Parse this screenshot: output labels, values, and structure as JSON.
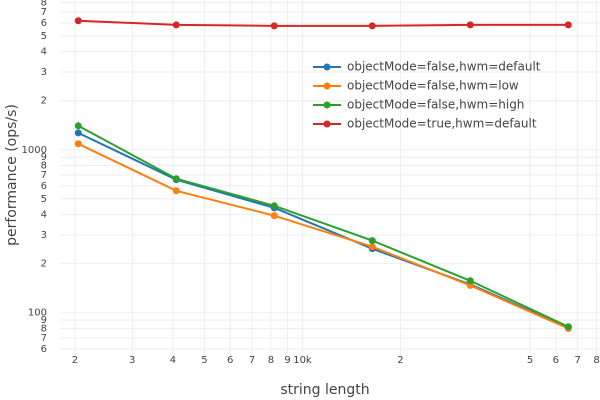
{
  "chart_data": {
    "type": "line",
    "x_label": "string length",
    "y_label": "performance (ops/s)",
    "x": [
      2048,
      4096,
      8192,
      16384,
      32768,
      65536
    ],
    "series": [
      {
        "name": "objectMode=false,hwm=default",
        "color": "#1f77b4",
        "values": [
          1270,
          655,
          440,
          247,
          149,
          81
        ]
      },
      {
        "name": "objectMode=false,hwm=low",
        "color": "#ff7f0e",
        "values": [
          1088,
          560,
          394,
          254,
          147,
          80
        ]
      },
      {
        "name": "objectMode=false,hwm=high",
        "color": "#2ca02c",
        "values": [
          1403,
          664,
          453,
          277,
          157,
          82
        ]
      },
      {
        "name": "objectMode=true,hwm=default",
        "color": "#d62728",
        "values": [
          6190,
          5840,
          5760,
          5760,
          5840,
          5840
        ]
      }
    ],
    "x_log": true,
    "y_log": true,
    "grid": true,
    "legend": "upper-right",
    "xlim": [
      1800,
      82000
    ],
    "ylim": [
      55,
      8300
    ],
    "xticks": [
      {
        "value": 2000,
        "label": "2"
      },
      {
        "value": 3000,
        "label": "3"
      },
      {
        "value": 4000,
        "label": "4"
      },
      {
        "value": 5000,
        "label": "5"
      },
      {
        "value": 6000,
        "label": "6"
      },
      {
        "value": 7000,
        "label": "7"
      },
      {
        "value": 8000,
        "label": "8"
      },
      {
        "value": 9000,
        "label": "9"
      },
      {
        "value": 10000,
        "label": "10k"
      },
      {
        "value": 20000,
        "label": "2"
      },
      {
        "value": 50000,
        "label": "5"
      },
      {
        "value": 60000,
        "label": "6"
      },
      {
        "value": 70000,
        "label": "7"
      },
      {
        "value": 80000,
        "label": "8"
      }
    ],
    "yticks": [
      {
        "value": 60,
        "label": "6"
      },
      {
        "value": 70,
        "label": "7"
      },
      {
        "value": 80,
        "label": "8"
      },
      {
        "value": 90,
        "label": "9"
      },
      100,
      {
        "value": 200,
        "label": "2"
      },
      {
        "value": 300,
        "label": "3"
      },
      {
        "value": 400,
        "label": "4"
      },
      {
        "value": 500,
        "label": "5"
      },
      {
        "value": 600,
        "label": "6"
      },
      {
        "value": 700,
        "label": "7"
      },
      {
        "value": 800,
        "label": "8"
      },
      {
        "value": 900,
        "label": "9"
      },
      1000,
      {
        "value": 2000,
        "label": "2"
      },
      {
        "value": 3000,
        "label": "3"
      },
      {
        "value": 4000,
        "label": "4"
      },
      {
        "value": 5000,
        "label": "5"
      },
      {
        "value": 6000,
        "label": "6"
      },
      {
        "value": 7000,
        "label": "7"
      },
      {
        "value": 8000,
        "label": "8"
      }
    ]
  }
}
